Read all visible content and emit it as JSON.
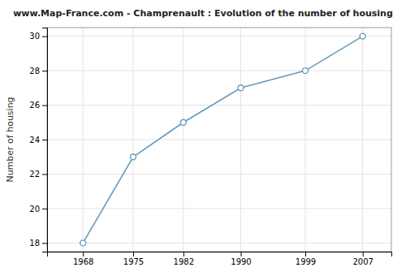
{
  "chart_data": {
    "type": "line",
    "title": "www.Map-France.com - Champrenault : Evolution of the number of housing",
    "ylabel": "Number of housing",
    "x": [
      1968,
      1975,
      1982,
      1990,
      1999,
      2007
    ],
    "values": [
      18,
      23,
      25,
      27,
      28,
      30
    ],
    "color": "#6699bb",
    "marker": "circle",
    "xlim": [
      1963,
      2011
    ],
    "ylim": [
      17.5,
      30.5
    ],
    "xticks": [
      1968,
      1975,
      1982,
      1990,
      1999,
      2007
    ],
    "yticks": [
      18,
      20,
      22,
      24,
      26,
      28,
      30
    ],
    "grid": true
  }
}
